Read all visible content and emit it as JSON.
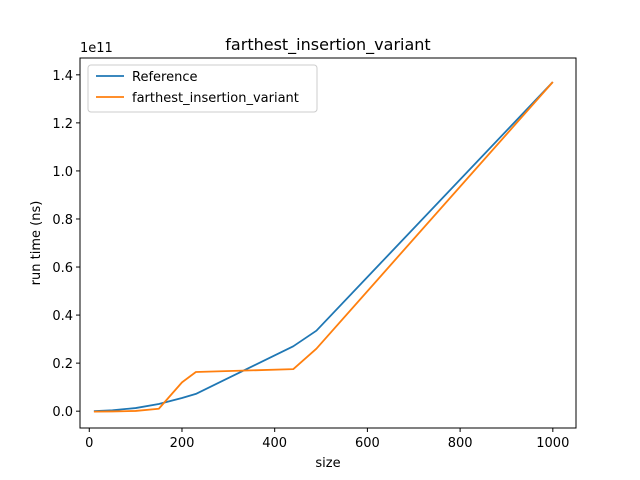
{
  "chart_data": {
    "type": "line",
    "title": "farthest_insertion_variant",
    "xlabel": "size",
    "ylabel": "run time (ns)",
    "y_offset_label": "1e11",
    "xlim": [
      -20,
      1050
    ],
    "ylim": [
      -0.07,
      1.47
    ],
    "x_ticks": [
      0,
      200,
      400,
      600,
      800,
      1000
    ],
    "x_tick_labels": [
      "0",
      "200",
      "400",
      "600",
      "800",
      "1000"
    ],
    "y_ticks": [
      0.0,
      0.2,
      0.4,
      0.6,
      0.8,
      1.0,
      1.2,
      1.4
    ],
    "y_tick_labels": [
      "0.0",
      "0.2",
      "0.4",
      "0.6",
      "0.8",
      "1.0",
      "1.2",
      "1.4"
    ],
    "grid": false,
    "legend_position": "top-left",
    "series": [
      {
        "name": "Reference",
        "color": "#1f77b4",
        "x": [
          10,
          50,
          100,
          150,
          200,
          230,
          440,
          490,
          1000
        ],
        "y": [
          0.0,
          0.004,
          0.013,
          0.03,
          0.055,
          0.072,
          0.27,
          0.335,
          1.37
        ]
      },
      {
        "name": "farthest_insertion_variant",
        "color": "#ff7f0e",
        "x": [
          10,
          50,
          100,
          150,
          200,
          230,
          440,
          490,
          1000
        ],
        "y": [
          -0.002,
          -0.001,
          0.001,
          0.01,
          0.12,
          0.163,
          0.175,
          0.26,
          1.37
        ]
      }
    ]
  }
}
